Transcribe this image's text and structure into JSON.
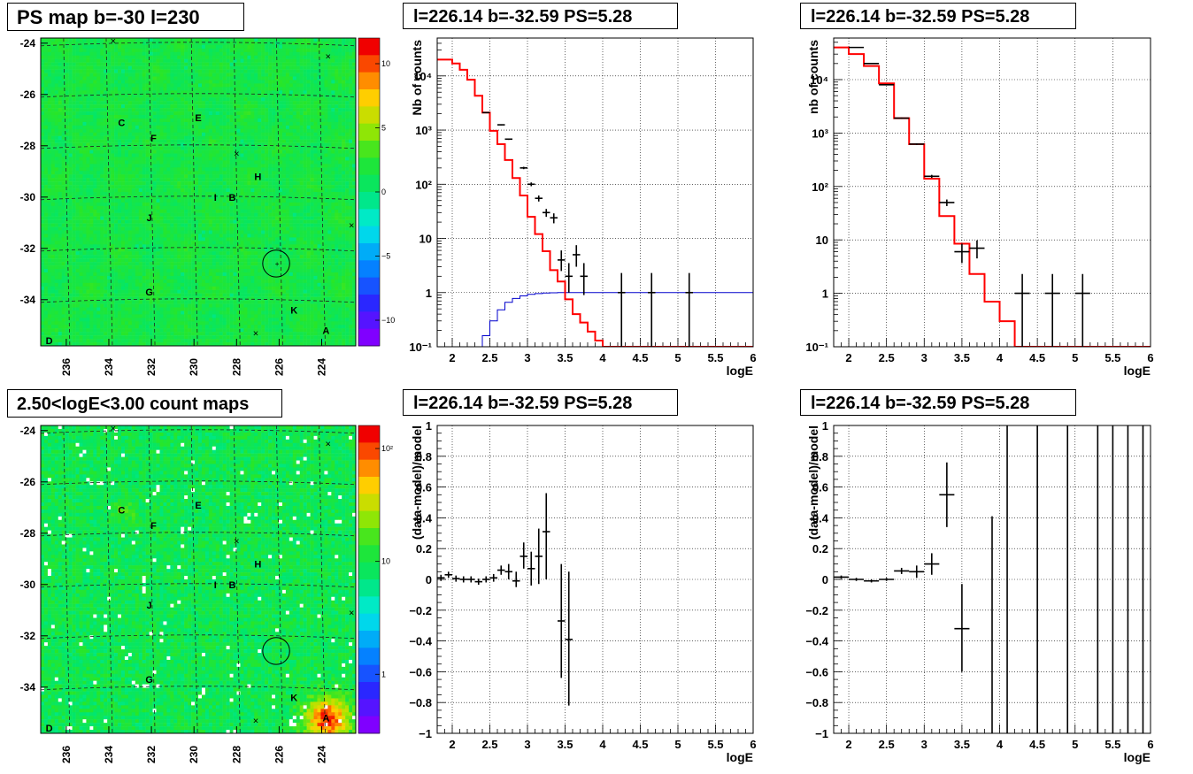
{
  "panels": {
    "map_top": {
      "title": "PS map b=-30 l=230",
      "colorbar_ticks": [
        "10",
        "5",
        "0",
        "−5",
        "−10"
      ],
      "colorbar_values": [
        10,
        5,
        0,
        -5,
        -10
      ],
      "colorbar_range": [
        -12,
        12
      ]
    },
    "map_bottom": {
      "title": "2.50<logE<3.00 count maps",
      "colorbar_ticks": [
        "10²",
        "10",
        "1"
      ],
      "colorbar_values": [
        100,
        10,
        1
      ],
      "colorbar_range": [
        0.3,
        160
      ]
    },
    "spectrum_left": {
      "title": "l=226.14 b=-32.59 PS=5.28",
      "ylabel": "Nb of counts",
      "xlabel": "logE"
    },
    "spectrum_right": {
      "title": "l=226.14 b=-32.59 PS=5.28",
      "ylabel": "nb of counts",
      "xlabel": "logE"
    },
    "residual_left": {
      "title": "l=226.14 b=-32.59 PS=5.28",
      "ylabel": "(data-model)/model",
      "xlabel": "logE"
    },
    "residual_right": {
      "title": "l=226.14 b=-32.59 PS=5.28",
      "ylabel": "(data-model)/model",
      "xlabel": "logE"
    }
  },
  "map_axes": {
    "x_ticks": [
      236,
      234,
      232,
      230,
      228,
      226,
      224
    ],
    "y_ticks": [
      -24,
      -26,
      -28,
      -30,
      -32,
      -34
    ],
    "x_range": [
      237.2,
      222.4
    ],
    "y_range": [
      -35.8,
      -23.8
    ]
  },
  "sources": [
    {
      "label": "C",
      "l": 233.4,
      "b": -27.1
    },
    {
      "label": "E",
      "l": 229.8,
      "b": -26.9
    },
    {
      "label": "F",
      "l": 231.9,
      "b": -27.7
    },
    {
      "label": "H",
      "l": 227.0,
      "b": -29.2
    },
    {
      "label": "I",
      "l": 229.0,
      "b": -30.0
    },
    {
      "label": "B",
      "l": 228.2,
      "b": -30.0
    },
    {
      "label": "J",
      "l": 232.1,
      "b": -30.8
    },
    {
      "label": "G",
      "l": 232.1,
      "b": -33.7
    },
    {
      "label": "K",
      "l": 225.3,
      "b": -34.4
    },
    {
      "label": "A",
      "l": 223.8,
      "b": -35.2
    },
    {
      "label": "D",
      "l": 236.8,
      "b": -35.6
    }
  ],
  "crosses": [
    {
      "l": 233.8,
      "b": -23.9
    },
    {
      "l": 223.7,
      "b": -24.5
    },
    {
      "l": 228.0,
      "b": -28.3
    },
    {
      "l": 222.6,
      "b": -31.1
    },
    {
      "l": 227.1,
      "b": -35.3
    }
  ],
  "circle": {
    "l": 226.14,
    "b": -32.59,
    "r_deg": 0.55
  },
  "chart_data": [
    {
      "type": "line",
      "name": "spectrum_left",
      "xlabel": "logE",
      "ylabel": "Nb of counts",
      "xlim": [
        1.8,
        6
      ],
      "ylim": [
        0.1,
        50000
      ],
      "yscale": "log",
      "x_ticks": [
        2,
        2.5,
        3,
        3.5,
        4,
        4.5,
        5,
        5.5,
        6
      ],
      "y_ticks": [
        0.1,
        1,
        10,
        100,
        1000,
        10000
      ],
      "y_tick_labels": [
        "10⁻¹",
        "1",
        "10",
        "10²",
        "10³",
        "10⁴"
      ],
      "grid": true,
      "model_red_steps": {
        "edges": [
          1.8,
          2.0,
          2.1,
          2.2,
          2.3,
          2.4,
          2.5,
          2.6,
          2.7,
          2.8,
          2.9,
          3.0,
          3.1,
          3.2,
          3.3,
          3.4,
          3.5,
          3.6,
          3.7,
          3.8,
          3.9,
          4.0,
          4.1,
          4.2,
          6.0
        ],
        "values": [
          20000,
          17000,
          13000,
          8500,
          4300,
          2100,
          970,
          550,
          280,
          130,
          62,
          25,
          12,
          5.8,
          2.6,
          1.6,
          0.75,
          0.4,
          0.28,
          0.19,
          0.13,
          0.1,
          0.1,
          0.1
        ]
      },
      "model_blue_steps": {
        "edges": [
          2.3,
          2.4,
          2.5,
          2.6,
          2.7,
          2.8,
          2.9,
          3.0,
          3.1,
          3.2,
          3.3,
          3.4,
          6.0
        ],
        "values": [
          0.1,
          0.16,
          0.3,
          0.48,
          0.66,
          0.78,
          0.87,
          0.93,
          0.96,
          0.98,
          0.99,
          1.0
        ]
      },
      "data_points": [
        {
          "x": 2.45,
          "y": 2100,
          "xerr": 0.05,
          "ylo": 2050,
          "yhi": 2150
        },
        {
          "x": 2.65,
          "y": 1250,
          "xerr": 0.05,
          "ylo": 1220,
          "yhi": 1280
        },
        {
          "x": 2.75,
          "y": 680,
          "xerr": 0.05,
          "ylo": 660,
          "yhi": 700
        },
        {
          "x": 2.95,
          "y": 200,
          "xerr": 0.05,
          "ylo": 190,
          "yhi": 210
        },
        {
          "x": 3.05,
          "y": 100,
          "xerr": 0.05,
          "ylo": 92,
          "yhi": 108
        },
        {
          "x": 3.15,
          "y": 55,
          "xerr": 0.05,
          "ylo": 48,
          "yhi": 62
        },
        {
          "x": 3.25,
          "y": 30,
          "xerr": 0.05,
          "ylo": 25,
          "yhi": 35
        },
        {
          "x": 3.35,
          "y": 24,
          "xerr": 0.05,
          "ylo": 19,
          "yhi": 29
        },
        {
          "x": 3.45,
          "y": 4,
          "xerr": 0.05,
          "ylo": 2.5,
          "yhi": 6
        },
        {
          "x": 3.55,
          "y": 2,
          "xerr": 0.05,
          "ylo": 1.0,
          "yhi": 3.5
        },
        {
          "x": 3.65,
          "y": 5,
          "xerr": 0.05,
          "ylo": 3,
          "yhi": 7.5
        },
        {
          "x": 3.75,
          "y": 2,
          "xerr": 0.05,
          "ylo": 0.9,
          "yhi": 3.5
        },
        {
          "x": 4.25,
          "y": 1,
          "xerr": 0.05,
          "ylo": 0.1,
          "yhi": 2.3
        },
        {
          "x": 4.65,
          "y": 1,
          "xerr": 0.05,
          "ylo": 0.1,
          "yhi": 2.3
        },
        {
          "x": 5.15,
          "y": 1,
          "xerr": 0.05,
          "ylo": 0.1,
          "yhi": 2.3
        }
      ]
    },
    {
      "type": "line",
      "name": "spectrum_right",
      "xlabel": "logE",
      "ylabel": "nb of counts",
      "xlim": [
        1.8,
        6
      ],
      "ylim": [
        0.1,
        60000
      ],
      "yscale": "log",
      "x_ticks": [
        2,
        2.5,
        3,
        3.5,
        4,
        4.5,
        5,
        5.5,
        6
      ],
      "y_ticks": [
        0.1,
        1,
        10,
        100,
        1000,
        10000
      ],
      "y_tick_labels": [
        "10⁻¹",
        "1",
        "10",
        "10²",
        "10³",
        "10⁴"
      ],
      "grid": true,
      "model_red_steps": {
        "edges": [
          1.8,
          2.0,
          2.2,
          2.4,
          2.6,
          2.8,
          3.0,
          3.2,
          3.4,
          3.6,
          3.8,
          4.0,
          4.2,
          6.0
        ],
        "values": [
          40000,
          30000,
          18000,
          8500,
          1900,
          620,
          140,
          28,
          8.5,
          2.3,
          0.7,
          0.3,
          0.1
        ]
      },
      "data_points": [
        {
          "x": 2.1,
          "y": 40000,
          "xerr": 0.1,
          "ylo": 39500,
          "yhi": 40500
        },
        {
          "x": 2.3,
          "y": 20000,
          "xerr": 0.1,
          "ylo": 19700,
          "yhi": 20300
        },
        {
          "x": 2.5,
          "y": 8000,
          "xerr": 0.1,
          "ylo": 7850,
          "yhi": 8150
        },
        {
          "x": 2.7,
          "y": 1900,
          "xerr": 0.1,
          "ylo": 1850,
          "yhi": 1950
        },
        {
          "x": 2.9,
          "y": 620,
          "xerr": 0.1,
          "ylo": 600,
          "yhi": 640
        },
        {
          "x": 3.1,
          "y": 155,
          "xerr": 0.1,
          "ylo": 145,
          "yhi": 165
        },
        {
          "x": 3.3,
          "y": 50,
          "xerr": 0.1,
          "ylo": 43,
          "yhi": 57
        },
        {
          "x": 3.5,
          "y": 6,
          "xerr": 0.1,
          "ylo": 3.7,
          "yhi": 8.5
        },
        {
          "x": 3.7,
          "y": 7,
          "xerr": 0.1,
          "ylo": 4.5,
          "yhi": 9.8
        },
        {
          "x": 4.3,
          "y": 1,
          "xerr": 0.1,
          "ylo": 0.1,
          "yhi": 2.3
        },
        {
          "x": 4.7,
          "y": 1,
          "xerr": 0.1,
          "ylo": 0.1,
          "yhi": 2.3
        },
        {
          "x": 5.1,
          "y": 1,
          "xerr": 0.1,
          "ylo": 0.1,
          "yhi": 2.3
        }
      ]
    },
    {
      "type": "scatter",
      "name": "residual_left",
      "xlabel": "logE",
      "ylabel": "(data-model)/model",
      "xlim": [
        1.8,
        6
      ],
      "ylim": [
        -1,
        1
      ],
      "x_ticks": [
        2,
        2.5,
        3,
        3.5,
        4,
        4.5,
        5,
        5.5,
        6
      ],
      "y_ticks": [
        -1,
        -0.8,
        -0.6,
        -0.4,
        -0.2,
        0,
        0.2,
        0.4,
        0.6,
        0.8,
        1
      ],
      "grid": true,
      "data_points": [
        {
          "x": 1.85,
          "y": 0.01,
          "xerr": 0.05,
          "ylo": -0.01,
          "yhi": 0.03
        },
        {
          "x": 1.95,
          "y": 0.03,
          "xerr": 0.05,
          "ylo": 0.01,
          "yhi": 0.05
        },
        {
          "x": 2.05,
          "y": 0.005,
          "xerr": 0.05,
          "ylo": -0.015,
          "yhi": 0.025
        },
        {
          "x": 2.15,
          "y": 0.0,
          "xerr": 0.05,
          "ylo": -0.02,
          "yhi": 0.02
        },
        {
          "x": 2.25,
          "y": 0.0,
          "xerr": 0.05,
          "ylo": -0.02,
          "yhi": 0.02
        },
        {
          "x": 2.35,
          "y": -0.015,
          "xerr": 0.05,
          "ylo": -0.035,
          "yhi": 0.005
        },
        {
          "x": 2.45,
          "y": 0.0,
          "xerr": 0.05,
          "ylo": -0.02,
          "yhi": 0.02
        },
        {
          "x": 2.55,
          "y": 0.01,
          "xerr": 0.05,
          "ylo": -0.015,
          "yhi": 0.035
        },
        {
          "x": 2.65,
          "y": 0.06,
          "xerr": 0.05,
          "ylo": 0.03,
          "yhi": 0.09
        },
        {
          "x": 2.75,
          "y": 0.05,
          "xerr": 0.05,
          "ylo": 0.0,
          "yhi": 0.1
        },
        {
          "x": 2.85,
          "y": -0.01,
          "xerr": 0.05,
          "ylo": -0.05,
          "yhi": 0.05
        },
        {
          "x": 2.95,
          "y": 0.15,
          "xerr": 0.05,
          "ylo": 0.07,
          "yhi": 0.24
        },
        {
          "x": 3.05,
          "y": 0.07,
          "xerr": 0.05,
          "ylo": -0.04,
          "yhi": 0.18
        },
        {
          "x": 3.15,
          "y": 0.15,
          "xerr": 0.05,
          "ylo": -0.03,
          "yhi": 0.33
        },
        {
          "x": 3.25,
          "y": 0.31,
          "xerr": 0.05,
          "ylo": 0.0,
          "yhi": 0.56
        },
        {
          "x": 3.45,
          "y": -0.27,
          "xerr": 0.05,
          "ylo": -0.64,
          "yhi": 0.1
        },
        {
          "x": 3.55,
          "y": -0.39,
          "xerr": 0.05,
          "ylo": -0.82,
          "yhi": 0.05
        }
      ]
    },
    {
      "type": "scatter",
      "name": "residual_right",
      "xlabel": "logE",
      "ylabel": "(data-model)/model",
      "xlim": [
        1.8,
        6
      ],
      "ylim": [
        -1,
        1
      ],
      "x_ticks": [
        2,
        2.5,
        3,
        3.5,
        4,
        4.5,
        5,
        5.5,
        6
      ],
      "y_ticks": [
        -1,
        -0.8,
        -0.6,
        -0.4,
        -0.2,
        0,
        0.2,
        0.4,
        0.6,
        0.8,
        1
      ],
      "grid": true,
      "data_points": [
        {
          "x": 1.9,
          "y": 0.015,
          "xerr": 0.1,
          "ylo": 0.005,
          "yhi": 0.025
        },
        {
          "x": 2.1,
          "y": 0.0,
          "xerr": 0.1,
          "ylo": -0.01,
          "yhi": 0.01
        },
        {
          "x": 2.3,
          "y": -0.01,
          "xerr": 0.1,
          "ylo": -0.02,
          "yhi": 0.0
        },
        {
          "x": 2.5,
          "y": 0.0,
          "xerr": 0.1,
          "ylo": -0.01,
          "yhi": 0.01
        },
        {
          "x": 2.7,
          "y": 0.055,
          "xerr": 0.1,
          "ylo": 0.035,
          "yhi": 0.075
        },
        {
          "x": 2.9,
          "y": 0.05,
          "xerr": 0.1,
          "ylo": 0.01,
          "yhi": 0.09
        },
        {
          "x": 3.1,
          "y": 0.1,
          "xerr": 0.1,
          "ylo": 0.03,
          "yhi": 0.17
        },
        {
          "x": 3.3,
          "y": 0.55,
          "xerr": 0.1,
          "ylo": 0.34,
          "yhi": 0.76
        },
        {
          "x": 3.5,
          "y": -0.32,
          "xerr": 0.1,
          "ylo": -0.6,
          "yhi": -0.03
        },
        {
          "x": 3.9,
          "y": -1,
          "xerr": 0.0,
          "ylo": -1,
          "yhi": 0.41
        },
        {
          "x": 4.1,
          "y": 1,
          "xerr": 0.0,
          "ylo": -1,
          "yhi": 1
        },
        {
          "x": 4.5,
          "y": 1,
          "xerr": 0.0,
          "ylo": -1,
          "yhi": 1
        },
        {
          "x": 4.9,
          "y": 1,
          "xerr": 0.0,
          "ylo": -1,
          "yhi": 1
        },
        {
          "x": 5.3,
          "y": 1,
          "xerr": 0.0,
          "ylo": -1,
          "yhi": 1
        },
        {
          "x": 5.5,
          "y": 1,
          "xerr": 0.0,
          "ylo": -1,
          "yhi": 1
        },
        {
          "x": 5.7,
          "y": 1,
          "xerr": 0.0,
          "ylo": -1,
          "yhi": 1
        },
        {
          "x": 5.9,
          "y": 1,
          "xerr": 0.0,
          "ylo": -1,
          "yhi": 1
        }
      ]
    }
  ],
  "colors": {
    "data": "#000000",
    "model_red": "#ff0000",
    "model_blue": "#0000cc",
    "grid": "#000000"
  }
}
